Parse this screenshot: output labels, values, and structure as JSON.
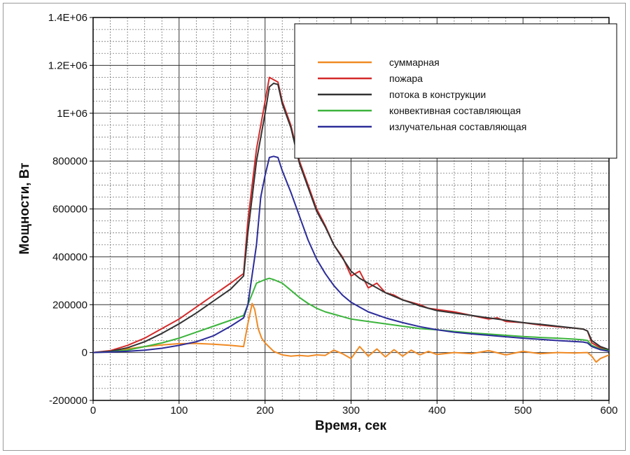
{
  "chart_data": {
    "type": "line",
    "title": "",
    "xlabel": "Время, сек",
    "ylabel": "Мощности, Вт",
    "xlim": [
      0,
      600
    ],
    "ylim": [
      -200000,
      1400000
    ],
    "x_ticks": [
      {
        "value": 0,
        "label": "0"
      },
      {
        "value": 100,
        "label": "100"
      },
      {
        "value": 200,
        "label": "200"
      },
      {
        "value": 300,
        "label": "300"
      },
      {
        "value": 400,
        "label": "400"
      },
      {
        "value": 500,
        "label": "500"
      },
      {
        "value": 600,
        "label": "600"
      }
    ],
    "y_ticks": [
      {
        "value": -200000,
        "label": "-200000"
      },
      {
        "value": 0,
        "label": "0"
      },
      {
        "value": 200000,
        "label": "200000"
      },
      {
        "value": 400000,
        "label": "400000"
      },
      {
        "value": 600000,
        "label": "600000"
      },
      {
        "value": 800000,
        "label": "800000"
      },
      {
        "value": 1000000,
        "label": "1E+06"
      },
      {
        "value": 1200000,
        "label": "1.2E+06"
      },
      {
        "value": 1400000,
        "label": "1.4E+06"
      }
    ],
    "grid": true,
    "legend_position": "top-right",
    "series": [
      {
        "name": "суммарная",
        "color": "#f08a24",
        "points": [
          [
            0,
            0
          ],
          [
            20,
            5000
          ],
          [
            40,
            15000
          ],
          [
            60,
            25000
          ],
          [
            80,
            32000
          ],
          [
            100,
            37000
          ],
          [
            120,
            38000
          ],
          [
            140,
            35000
          ],
          [
            160,
            30000
          ],
          [
            175,
            25000
          ],
          [
            180,
            120000
          ],
          [
            185,
            205000
          ],
          [
            188,
            180000
          ],
          [
            192,
            100000
          ],
          [
            196,
            60000
          ],
          [
            200,
            40000
          ],
          [
            210,
            5000
          ],
          [
            220,
            -10000
          ],
          [
            230,
            -15000
          ],
          [
            240,
            -12000
          ],
          [
            250,
            -15000
          ],
          [
            260,
            -10000
          ],
          [
            270,
            -12000
          ],
          [
            280,
            10000
          ],
          [
            290,
            -5000
          ],
          [
            300,
            -25000
          ],
          [
            310,
            25000
          ],
          [
            320,
            -15000
          ],
          [
            330,
            15000
          ],
          [
            340,
            -18000
          ],
          [
            350,
            12000
          ],
          [
            360,
            -15000
          ],
          [
            370,
            10000
          ],
          [
            380,
            -10000
          ],
          [
            390,
            5000
          ],
          [
            400,
            -8000
          ],
          [
            420,
            0
          ],
          [
            440,
            -5000
          ],
          [
            460,
            8000
          ],
          [
            480,
            -10000
          ],
          [
            500,
            5000
          ],
          [
            520,
            -5000
          ],
          [
            540,
            0
          ],
          [
            560,
            -2000
          ],
          [
            575,
            0
          ],
          [
            580,
            -15000
          ],
          [
            585,
            -40000
          ],
          [
            590,
            -25000
          ],
          [
            600,
            -10000
          ]
        ]
      },
      {
        "name": "пожара",
        "color": "#d42a2a",
        "points": [
          [
            0,
            0
          ],
          [
            20,
            8000
          ],
          [
            40,
            30000
          ],
          [
            60,
            60000
          ],
          [
            80,
            100000
          ],
          [
            100,
            140000
          ],
          [
            120,
            190000
          ],
          [
            140,
            240000
          ],
          [
            160,
            290000
          ],
          [
            175,
            330000
          ],
          [
            180,
            550000
          ],
          [
            190,
            850000
          ],
          [
            200,
            1050000
          ],
          [
            205,
            1150000
          ],
          [
            210,
            1140000
          ],
          [
            215,
            1130000
          ],
          [
            220,
            1050000
          ],
          [
            230,
            950000
          ],
          [
            240,
            800000
          ],
          [
            250,
            700000
          ],
          [
            260,
            600000
          ],
          [
            270,
            530000
          ],
          [
            280,
            450000
          ],
          [
            290,
            400000
          ],
          [
            300,
            320000
          ],
          [
            310,
            340000
          ],
          [
            320,
            270000
          ],
          [
            330,
            290000
          ],
          [
            340,
            250000
          ],
          [
            350,
            240000
          ],
          [
            360,
            220000
          ],
          [
            370,
            210000
          ],
          [
            380,
            200000
          ],
          [
            390,
            185000
          ],
          [
            400,
            180000
          ],
          [
            420,
            170000
          ],
          [
            440,
            155000
          ],
          [
            460,
            140000
          ],
          [
            470,
            145000
          ],
          [
            480,
            130000
          ],
          [
            500,
            125000
          ],
          [
            520,
            115000
          ],
          [
            540,
            108000
          ],
          [
            560,
            102000
          ],
          [
            570,
            98000
          ],
          [
            575,
            90000
          ],
          [
            580,
            40000
          ],
          [
            590,
            20000
          ],
          [
            600,
            10000
          ]
        ]
      },
      {
        "name": "потока в конструкции",
        "color": "#333333",
        "points": [
          [
            0,
            0
          ],
          [
            20,
            5000
          ],
          [
            40,
            20000
          ],
          [
            60,
            45000
          ],
          [
            80,
            80000
          ],
          [
            100,
            120000
          ],
          [
            120,
            165000
          ],
          [
            140,
            215000
          ],
          [
            160,
            265000
          ],
          [
            175,
            320000
          ],
          [
            180,
            500000
          ],
          [
            190,
            800000
          ],
          [
            200,
            1000000
          ],
          [
            205,
            1110000
          ],
          [
            210,
            1125000
          ],
          [
            215,
            1120000
          ],
          [
            220,
            1040000
          ],
          [
            230,
            940000
          ],
          [
            240,
            790000
          ],
          [
            250,
            690000
          ],
          [
            260,
            590000
          ],
          [
            270,
            525000
          ],
          [
            280,
            450000
          ],
          [
            290,
            395000
          ],
          [
            300,
            340000
          ],
          [
            310,
            310000
          ],
          [
            320,
            290000
          ],
          [
            330,
            270000
          ],
          [
            340,
            250000
          ],
          [
            350,
            235000
          ],
          [
            360,
            220000
          ],
          [
            370,
            208000
          ],
          [
            380,
            195000
          ],
          [
            390,
            185000
          ],
          [
            400,
            175000
          ],
          [
            420,
            165000
          ],
          [
            440,
            155000
          ],
          [
            460,
            145000
          ],
          [
            480,
            135000
          ],
          [
            500,
            125000
          ],
          [
            520,
            118000
          ],
          [
            540,
            110000
          ],
          [
            560,
            102000
          ],
          [
            570,
            98000
          ],
          [
            575,
            90000
          ],
          [
            580,
            50000
          ],
          [
            590,
            25000
          ],
          [
            600,
            12000
          ]
        ]
      },
      {
        "name": "конвективная составляющая",
        "color": "#3cb43c",
        "points": [
          [
            0,
            0
          ],
          [
            20,
            3000
          ],
          [
            40,
            10000
          ],
          [
            60,
            25000
          ],
          [
            80,
            40000
          ],
          [
            100,
            60000
          ],
          [
            120,
            85000
          ],
          [
            140,
            110000
          ],
          [
            160,
            135000
          ],
          [
            175,
            155000
          ],
          [
            180,
            200000
          ],
          [
            190,
            290000
          ],
          [
            200,
            305000
          ],
          [
            205,
            310000
          ],
          [
            210,
            305000
          ],
          [
            220,
            290000
          ],
          [
            230,
            260000
          ],
          [
            240,
            230000
          ],
          [
            250,
            205000
          ],
          [
            260,
            185000
          ],
          [
            270,
            170000
          ],
          [
            280,
            160000
          ],
          [
            290,
            150000
          ],
          [
            300,
            140000
          ],
          [
            320,
            130000
          ],
          [
            340,
            120000
          ],
          [
            360,
            110000
          ],
          [
            380,
            100000
          ],
          [
            400,
            95000
          ],
          [
            420,
            88000
          ],
          [
            440,
            82000
          ],
          [
            460,
            77000
          ],
          [
            480,
            72000
          ],
          [
            500,
            67000
          ],
          [
            520,
            63000
          ],
          [
            540,
            60000
          ],
          [
            560,
            56000
          ],
          [
            570,
            53000
          ],
          [
            575,
            50000
          ],
          [
            580,
            30000
          ],
          [
            590,
            15000
          ],
          [
            600,
            8000
          ]
        ]
      },
      {
        "name": "излучательная составляющая",
        "color": "#2c2c9a",
        "points": [
          [
            0,
            0
          ],
          [
            20,
            2000
          ],
          [
            40,
            5000
          ],
          [
            60,
            10000
          ],
          [
            80,
            18000
          ],
          [
            100,
            30000
          ],
          [
            120,
            45000
          ],
          [
            140,
            70000
          ],
          [
            160,
            110000
          ],
          [
            175,
            145000
          ],
          [
            180,
            200000
          ],
          [
            190,
            450000
          ],
          [
            195,
            650000
          ],
          [
            200,
            740000
          ],
          [
            205,
            815000
          ],
          [
            210,
            820000
          ],
          [
            215,
            815000
          ],
          [
            220,
            760000
          ],
          [
            230,
            670000
          ],
          [
            240,
            570000
          ],
          [
            250,
            470000
          ],
          [
            260,
            390000
          ],
          [
            270,
            330000
          ],
          [
            280,
            280000
          ],
          [
            290,
            240000
          ],
          [
            300,
            210000
          ],
          [
            310,
            190000
          ],
          [
            320,
            170000
          ],
          [
            340,
            145000
          ],
          [
            360,
            125000
          ],
          [
            380,
            108000
          ],
          [
            400,
            95000
          ],
          [
            420,
            85000
          ],
          [
            440,
            78000
          ],
          [
            460,
            72000
          ],
          [
            480,
            66000
          ],
          [
            500,
            60000
          ],
          [
            520,
            55000
          ],
          [
            540,
            50000
          ],
          [
            560,
            46000
          ],
          [
            570,
            44000
          ],
          [
            575,
            40000
          ],
          [
            580,
            25000
          ],
          [
            590,
            12000
          ],
          [
            600,
            5000
          ]
        ]
      }
    ]
  }
}
